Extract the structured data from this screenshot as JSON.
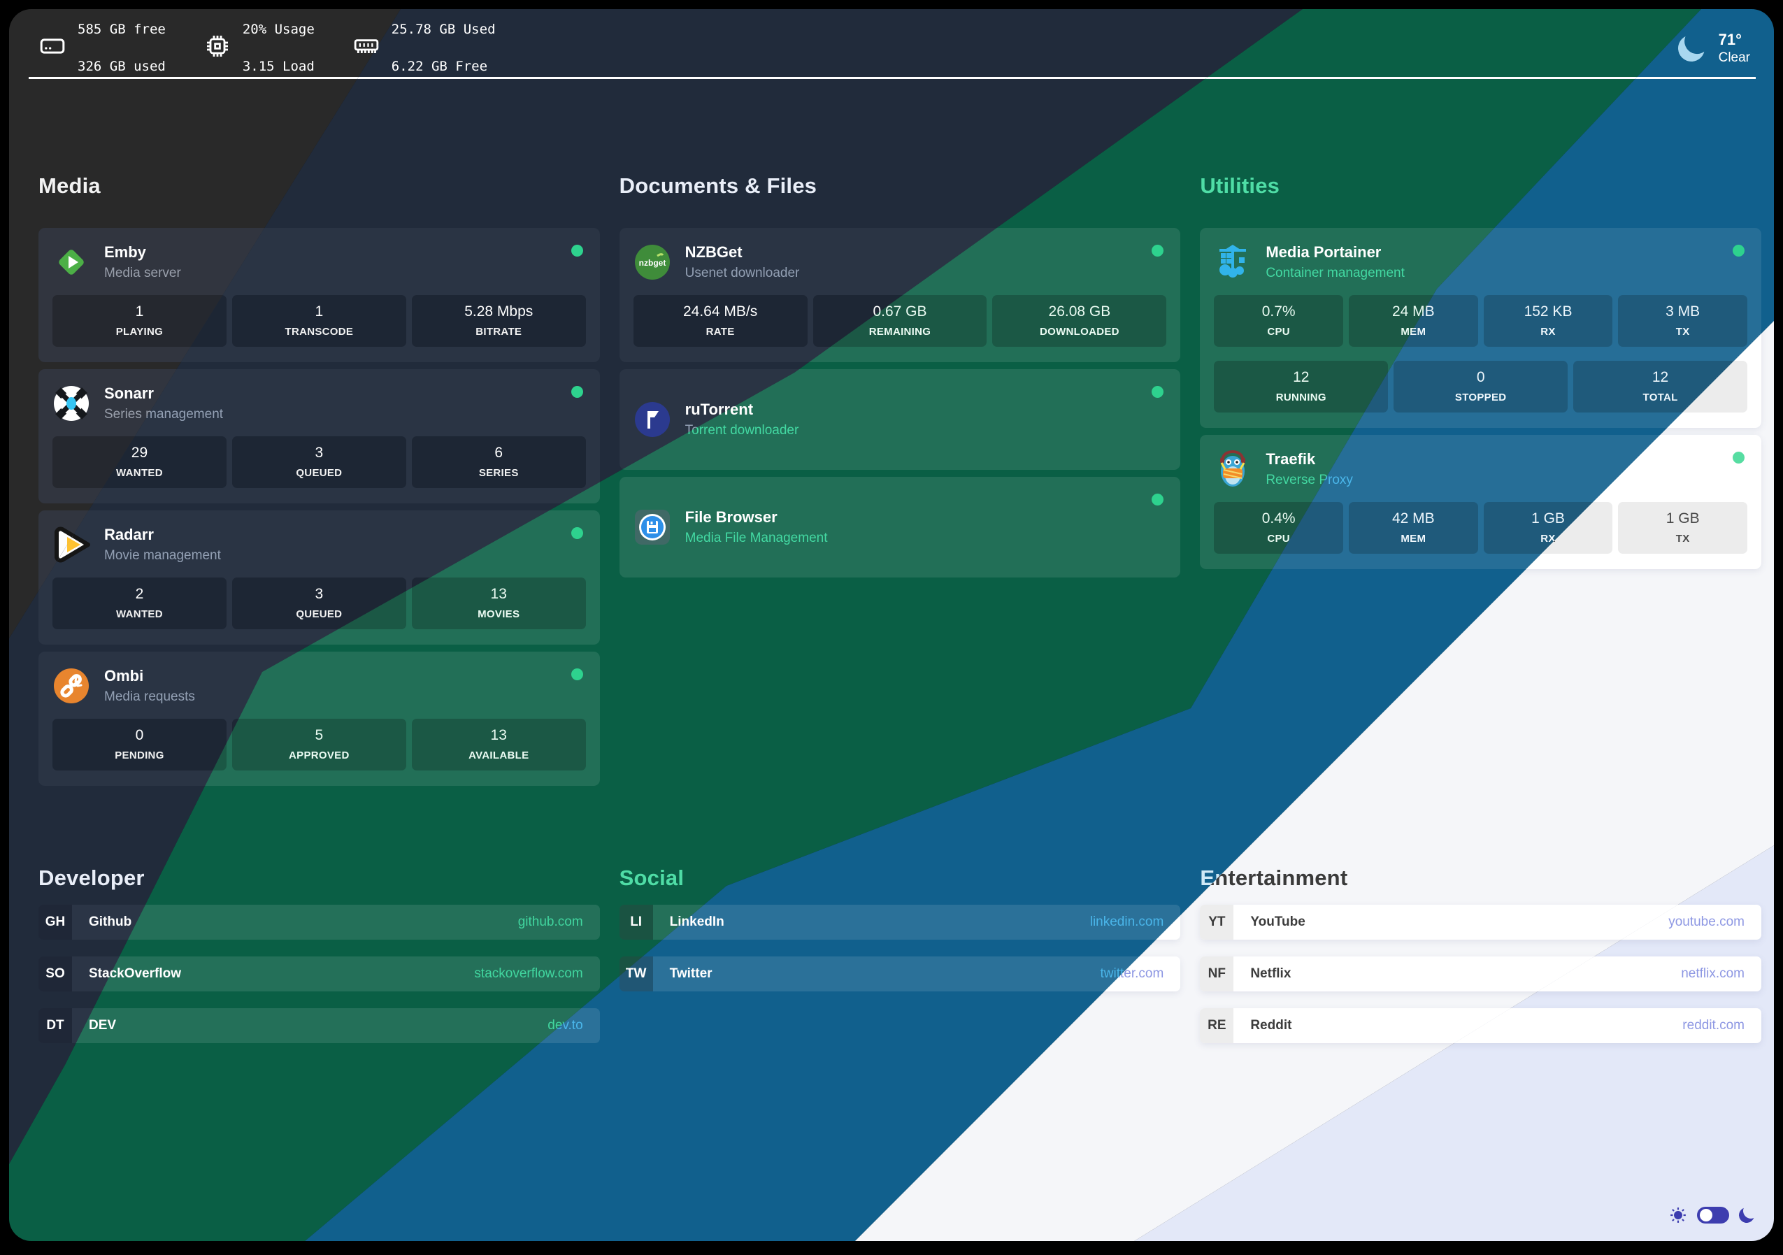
{
  "topbar": {
    "disk": {
      "line1": "585 GB free",
      "line2": "326 GB used"
    },
    "cpu": {
      "line1": "20% Usage",
      "line2": "3.15 Load"
    },
    "ram": {
      "line1": "25.78 GB Used",
      "line2": "6.22 GB Free"
    },
    "weather": {
      "temp": "71°",
      "condition": "Clear",
      "icon": "moon-icon"
    }
  },
  "columns": [
    {
      "heading": "Media",
      "services": [
        {
          "name": "Emby",
          "subtitle": "Media server",
          "icon": "emby-icon",
          "status": "online",
          "stats": [
            {
              "value": "1",
              "label": "PLAYING"
            },
            {
              "value": "1",
              "label": "TRANSCODE"
            },
            {
              "value": "5.28 Mbps",
              "label": "BITRATE"
            }
          ]
        },
        {
          "name": "Sonarr",
          "subtitle": "Series management",
          "icon": "sonarr-icon",
          "status": "online",
          "stats": [
            {
              "value": "29",
              "label": "WANTED"
            },
            {
              "value": "3",
              "label": "QUEUED"
            },
            {
              "value": "6",
              "label": "SERIES"
            }
          ]
        },
        {
          "name": "Radarr",
          "subtitle": "Movie management",
          "icon": "radarr-icon",
          "status": "online",
          "stats": [
            {
              "value": "2",
              "label": "WANTED"
            },
            {
              "value": "3",
              "label": "QUEUED"
            },
            {
              "value": "13",
              "label": "MOVIES"
            }
          ]
        },
        {
          "name": "Ombi",
          "subtitle": "Media requests",
          "icon": "ombi-icon",
          "status": "online",
          "stats": [
            {
              "value": "0",
              "label": "PENDING"
            },
            {
              "value": "5",
              "label": "APPROVED"
            },
            {
              "value": "13",
              "label": "AVAILABLE"
            }
          ]
        }
      ],
      "links_heading": "Developer",
      "links": [
        {
          "tag": "GH",
          "name": "Github",
          "url": "github.com"
        },
        {
          "tag": "SO",
          "name": "StackOverflow",
          "url": "stackoverflow.com"
        },
        {
          "tag": "DT",
          "name": "DEV",
          "url": "dev.to"
        }
      ]
    },
    {
      "heading": "Documents & Files",
      "services": [
        {
          "name": "NZBGet",
          "subtitle": "Usenet downloader",
          "icon": "nzbget-icon",
          "status": "online",
          "stats": [
            {
              "value": "24.64 MB/s",
              "label": "RATE"
            },
            {
              "value": "0.67 GB",
              "label": "REMAINING"
            },
            {
              "value": "26.08 GB",
              "label": "DOWNLOADED"
            }
          ]
        },
        {
          "name": "ruTorrent",
          "subtitle": "Torrent downloader",
          "icon": "rutorrent-icon",
          "status": "online"
        },
        {
          "name": "File Browser",
          "subtitle": "Media File Management",
          "icon": "filebrowser-icon",
          "status": "online"
        }
      ],
      "links_heading": "Social",
      "links": [
        {
          "tag": "LI",
          "name": "LinkedIn",
          "url": "linkedin.com"
        },
        {
          "tag": "TW",
          "name": "Twitter",
          "url": "twitter.com"
        }
      ]
    },
    {
      "heading": "Utilities",
      "services": [
        {
          "name": "Media Portainer",
          "subtitle": "Container management",
          "icon": "portainer-icon",
          "status": "online",
          "stats": [
            {
              "value": "0.7%",
              "label": "CPU"
            },
            {
              "value": "24 MB",
              "label": "MEM"
            },
            {
              "value": "152 KB",
              "label": "RX"
            },
            {
              "value": "3 MB",
              "label": "TX"
            }
          ],
          "stats2": [
            {
              "value": "12",
              "label": "RUNNING"
            },
            {
              "value": "0",
              "label": "STOPPED"
            },
            {
              "value": "12",
              "label": "TOTAL"
            }
          ]
        },
        {
          "name": "Traefik",
          "subtitle": "Reverse Proxy",
          "icon": "traefik-icon",
          "status": "online",
          "stats": [
            {
              "value": "0.4%",
              "label": "CPU"
            },
            {
              "value": "42 MB",
              "label": "MEM"
            },
            {
              "value": "1 GB",
              "label": "RX"
            },
            {
              "value": "1 GB",
              "label": "TX"
            }
          ]
        }
      ],
      "links_heading": "Entertainment",
      "links": [
        {
          "tag": "YT",
          "name": "YouTube",
          "url": "youtube.com"
        },
        {
          "tag": "NF",
          "name": "Netflix",
          "url": "netflix.com"
        },
        {
          "tag": "RE",
          "name": "Reddit",
          "url": "reddit.com"
        }
      ]
    }
  ],
  "colors": {
    "status_dot": "#2ED28E",
    "accent_green": "#3FD6A0",
    "accent_blue": "#4AB6EA",
    "accent_link_light": "#8D97E3",
    "toggle_indigo": "#3D3DAF",
    "slice_charcoal": "#292929",
    "slice_navy": "#212B3B",
    "slice_green": "#0A5F45",
    "slice_blue": "#11608D",
    "slice_white": "#F5F6F9",
    "slice_lavender": "#E3E8F8"
  },
  "theme_controls": {
    "sun": "sun-icon",
    "toggle": "theme-toggle",
    "moon": "moon-icon"
  }
}
